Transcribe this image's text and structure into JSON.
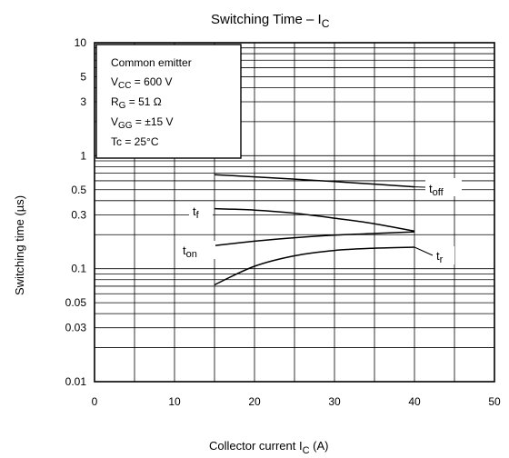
{
  "chart_data": {
    "type": "line",
    "title": {
      "main": "Switching Time – I",
      "sub": "C"
    },
    "xlabel": {
      "main": "Collector current   I",
      "sub": "C",
      "unit": "   (A)"
    },
    "ylabel": "Switching time    (µs)",
    "x_scale": "linear",
    "y_scale": "log",
    "xlim": [
      0,
      50
    ],
    "ylim": [
      0.01,
      10
    ],
    "x_ticks": [
      0,
      10,
      20,
      30,
      40,
      50
    ],
    "x_tick_labels": [
      "0",
      "10",
      "20",
      "30",
      "40",
      "50"
    ],
    "y_ticks": [
      0.01,
      0.03,
      0.05,
      0.1,
      0.3,
      0.5,
      1,
      3,
      5,
      10
    ],
    "y_tick_labels": [
      "0.01",
      "0.03",
      "0.05",
      "0.1",
      "0.3",
      "0.5",
      "1",
      "3",
      "5",
      "10"
    ],
    "grid": true,
    "conditions": [
      {
        "text": "Common emitter"
      },
      {
        "main": "V",
        "sub": "CC",
        "rest": " = 600 V"
      },
      {
        "main": "R",
        "sub": "G",
        "rest": " = 51 Ω"
      },
      {
        "main": "V",
        "sub": "GG",
        "rest": " = ±15 V"
      },
      {
        "text": "Tc = 25°C"
      }
    ],
    "series": [
      {
        "name": {
          "main": "t",
          "sub": "off"
        },
        "x": [
          15,
          20,
          25,
          30,
          35,
          40
        ],
        "y": [
          0.68,
          0.65,
          0.62,
          0.59,
          0.56,
          0.53
        ]
      },
      {
        "name": {
          "main": "t",
          "sub": "f"
        },
        "x": [
          15,
          20,
          25,
          30,
          35,
          40
        ],
        "y": [
          0.34,
          0.33,
          0.31,
          0.28,
          0.25,
          0.215
        ]
      },
      {
        "name": {
          "main": "t",
          "sub": "on"
        },
        "x": [
          15,
          20,
          25,
          30,
          35,
          40
        ],
        "y": [
          0.16,
          0.175,
          0.188,
          0.198,
          0.205,
          0.212
        ]
      },
      {
        "name": {
          "main": "t",
          "sub": "r"
        },
        "x": [
          15,
          20,
          25,
          30,
          35,
          40
        ],
        "y": [
          0.072,
          0.105,
          0.13,
          0.145,
          0.152,
          0.155
        ]
      }
    ]
  }
}
